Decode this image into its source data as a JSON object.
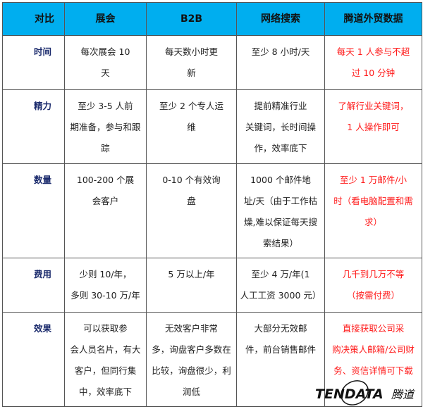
{
  "headers": [
    "对比",
    "展会",
    "B2B",
    "网络搜索",
    "腾道外贸数据"
  ],
  "rows": [
    {
      "label": "时间",
      "cells": [
        [
          "每次展会 10",
          "天"
        ],
        [
          "每天数小时更",
          "新"
        ],
        [
          "至少 8 小时/天"
        ],
        [
          "每天 1 人参与不超",
          "过 10 分钟"
        ]
      ]
    },
    {
      "label": "精力",
      "cells": [
        [
          "至少 3-5 人前",
          "期准备，参与和跟",
          "踪"
        ],
        [
          "至少 2 个专人运",
          "维"
        ],
        [
          "提前精准行业",
          "关键词，长时间操",
          "作，效率底下"
        ],
        [
          "了解行业关键词，",
          "1 人操作即可"
        ]
      ]
    },
    {
      "label": "数量",
      "cells": [
        [
          "100-200 个展",
          "会客户"
        ],
        [
          "0-10 个有效询",
          "盘"
        ],
        [
          "1000 个邮件地",
          "址/天（由于工作枯",
          "燥,难以保证每天搜",
          "索结果）"
        ],
        [
          "至少 1 万邮件/小",
          "时（看电脑配置和需",
          "求）"
        ]
      ]
    },
    {
      "label": "费用",
      "cells": [
        [
          "少则 10/年，",
          "多则 30-10 万/年"
        ],
        [
          "5 万以上/年"
        ],
        [
          "至少 4 万/年(1",
          "人工工资 3000 元）"
        ],
        [
          "几千到几万不等",
          "（按需付费）"
        ]
      ]
    },
    {
      "label": "效果",
      "cells": [
        [
          "可以获取参",
          "会人员名片，有大",
          "客户，但同行集",
          "中，效率底下"
        ],
        [
          "无效客户非常",
          "多，询盘客户多数在",
          "比较，询盘很少，利",
          "润低"
        ],
        [
          "大部分无效邮",
          "件，前台销售邮件"
        ],
        [
          "直接获取公司采",
          "购决策人邮箱/公司财",
          "务、资信详情可下载"
        ]
      ]
    }
  ],
  "logo": {
    "text": "TENDATA",
    "cn": "腾道"
  },
  "colors": {
    "header_bg": "#00aeef",
    "highlight_text": "#ff1a1a",
    "label_text": "#1a2a6c"
  }
}
